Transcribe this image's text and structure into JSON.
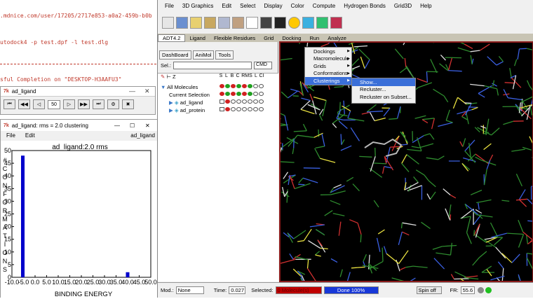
{
  "terminal": {
    "url_line": ".mdnice.com/user/17205/2717e853-a0a2-459b-b0b",
    "command_line": "utodock4 -p test.dpf -l test.dlg",
    "completion_line": "sful Completion on \"DESKTOP-H3AAFU3\""
  },
  "player": {
    "title": "ad_ligand",
    "frame_value": "50"
  },
  "histogram": {
    "window_title": "ad_ligand: rms = 2.0 clustering",
    "menu_file": "File",
    "menu_edit": "Edit",
    "menu_right": "ad_ligand",
    "plot_title": "ad_ligand:2.0 rms",
    "y_axis_label": "#CONFORMATIONS",
    "x_axis_label": "BINDING ENERGY"
  },
  "chart_data": {
    "type": "bar",
    "title": "ad_ligand:2.0 rms",
    "xlabel": "BINDING ENERGY",
    "ylabel": "# CONFORMATIONS",
    "x_ticks": [
      "-10.0",
      "-5.0",
      "0.0",
      "5.0",
      "10.0",
      "15.0",
      "20.0",
      "25.0",
      "30.0",
      "35.0",
      "40.0",
      "45.0",
      "50.0"
    ],
    "y_ticks": [
      "0",
      "5",
      "10",
      "15",
      "20",
      "25",
      "30",
      "35",
      "40",
      "45",
      "50"
    ],
    "xlim": [
      -10,
      50
    ],
    "ylim": [
      0,
      50
    ],
    "bars": [
      {
        "x": -5.3,
        "value": 48
      },
      {
        "x": 40.0,
        "value": 2
      }
    ]
  },
  "app": {
    "menu": [
      "File",
      "3D Graphics",
      "Edit",
      "Select",
      "Display",
      "Color",
      "Compute",
      "Hydrogen Bonds",
      "Grid3D",
      "Help"
    ],
    "tabs": [
      "ADT4.2",
      "Ligand",
      "Flexible Residues",
      "Grid",
      "Docking",
      "Run",
      "Analyze"
    ],
    "subtabs": [
      "DashBoard",
      "AniMol",
      "Tools"
    ],
    "sel_label": "Sel.:",
    "cmd_label": "CMD",
    "col_headers": [
      "S",
      "L",
      "B",
      "C",
      "RMS",
      "L",
      "CI"
    ],
    "tree": {
      "all_molecules": "All Molecules",
      "current_selection": "Current Selection",
      "mol1": "ad_ligand",
      "mol2": "ad_protein"
    }
  },
  "analyze_menu": [
    "Dockings",
    "Macromolecule",
    "Grids",
    "Conformations",
    "Clusterings"
  ],
  "clusterings_menu": [
    "Show...",
    "Recluster...",
    "Recluster on Subset..."
  ],
  "status": {
    "mod_label": "Mod.:",
    "mod_value": "None",
    "time_label": "Time:",
    "time_value": "0.027",
    "selected_label": "Selected:",
    "selected_value": "0 Molecule(s)",
    "done_label": "Done 100%",
    "spin_label": "Spin off",
    "fr_label": "FR:",
    "fr_value": "55.6"
  },
  "colors": {
    "accent": "#3a6fd8",
    "bar_blue": "#0000cc",
    "viewer_bg": "#000000"
  }
}
